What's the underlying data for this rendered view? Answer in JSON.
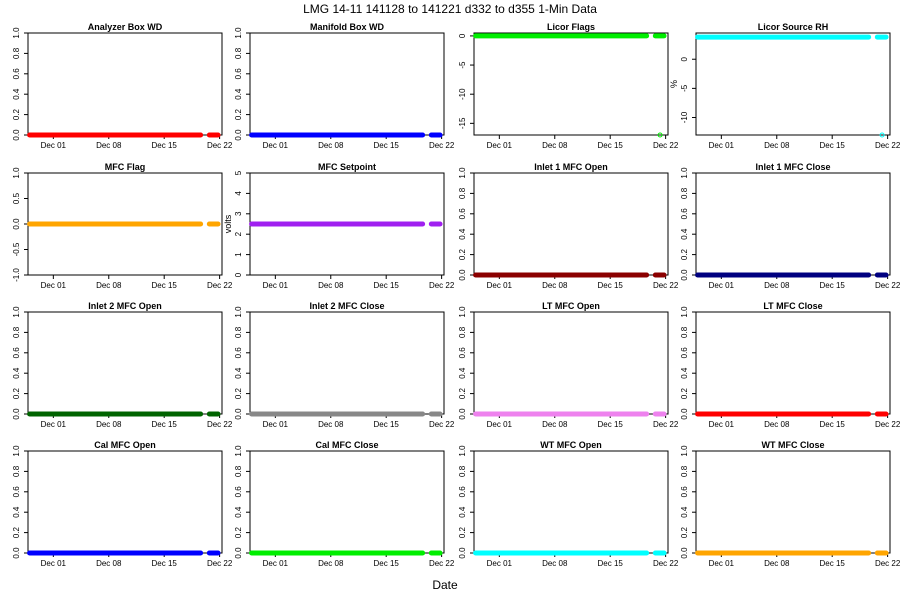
{
  "figure": {
    "title": "LMG  14-11    141128 to 141221    d332 to d355   1-Min Data",
    "xlabel": "Date"
  },
  "chart_data": [
    {
      "type": "scatter",
      "title": "Analyzer Box WD",
      "ylabel": "",
      "ylim": [
        0,
        1
      ],
      "yticks": [
        "0.0",
        "0.2",
        "0.4",
        "0.6",
        "0.8",
        "1.0"
      ],
      "ytick_values": [
        0,
        0.2,
        0.4,
        0.6,
        0.8,
        1.0
      ],
      "color": "#ff0000",
      "xticks": [
        "Dec 01",
        "Dec 08",
        "Dec 15",
        "Dec 22"
      ],
      "xtick_values": [
        3,
        10,
        17,
        24
      ],
      "xlim": [
        -0.2,
        24.3
      ],
      "segments": [
        [
          0,
          21.6
        ],
        [
          22.7,
          23.8
        ]
      ],
      "value": 0,
      "outliers": []
    },
    {
      "type": "scatter",
      "title": "Manifold Box WD",
      "ylabel": "",
      "ylim": [
        0,
        1
      ],
      "yticks": [
        "0.0",
        "0.2",
        "0.4",
        "0.6",
        "0.8",
        "1.0"
      ],
      "ytick_values": [
        0,
        0.2,
        0.4,
        0.6,
        0.8,
        1.0
      ],
      "color": "#0000ff",
      "xticks": [
        "Dec 01",
        "Dec 08",
        "Dec 15",
        "Dec 22"
      ],
      "xtick_values": [
        3,
        10,
        17,
        24
      ],
      "xlim": [
        -0.2,
        24.3
      ],
      "segments": [
        [
          0,
          21.6
        ],
        [
          22.7,
          23.8
        ]
      ],
      "value": 0,
      "outliers": []
    },
    {
      "type": "scatter",
      "title": "Licor Flags",
      "ylabel": "",
      "ylim": [
        -17,
        0.5
      ],
      "yticks": [
        "0",
        "-5",
        "-10",
        "-15"
      ],
      "ytick_values": [
        0,
        -5,
        -10,
        -15
      ],
      "color": "#00ee00",
      "xticks": [
        "Dec 01",
        "Dec 08",
        "Dec 15",
        "Dec 22"
      ],
      "xtick_values": [
        3,
        10,
        17,
        24
      ],
      "xlim": [
        -0.2,
        24.3
      ],
      "segments": [
        [
          0,
          21.6
        ],
        [
          22.7,
          23.8
        ]
      ],
      "value": 0,
      "outliers": [
        [
          23.3,
          -17
        ]
      ]
    },
    {
      "type": "scatter",
      "title": "Licor Source RH",
      "ylabel": "%",
      "ylim": [
        -13,
        4.5
      ],
      "yticks": [
        "0",
        "-5",
        "-10"
      ],
      "ytick_values": [
        0,
        -5,
        -10
      ],
      "color": "#00ffff",
      "xticks": [
        "Dec 01",
        "Dec 08",
        "Dec 15",
        "Dec 22"
      ],
      "xtick_values": [
        3,
        10,
        17,
        24
      ],
      "xlim": [
        -0.2,
        24.3
      ],
      "segments": [
        [
          0,
          21.6
        ],
        [
          22.7,
          23.8
        ]
      ],
      "value": 3.8,
      "outliers": [
        [
          23.3,
          -13
        ]
      ]
    },
    {
      "type": "scatter",
      "title": "MFC Flag",
      "ylabel": "",
      "ylim": [
        -1,
        1
      ],
      "yticks": [
        "-1.0",
        "-0.5",
        "0.0",
        "0.5",
        "1.0"
      ],
      "ytick_values": [
        -1,
        -0.5,
        0,
        0.5,
        1
      ],
      "color": "#ffa500",
      "xticks": [
        "Dec 01",
        "Dec 08",
        "Dec 15",
        "Dec 22"
      ],
      "xtick_values": [
        3,
        10,
        17,
        24
      ],
      "xlim": [
        -0.2,
        24.3
      ],
      "segments": [
        [
          0,
          21.6
        ],
        [
          22.7,
          23.8
        ]
      ],
      "value": 0,
      "outliers": []
    },
    {
      "type": "scatter",
      "title": "MFC Setpoint",
      "ylabel": "volts",
      "ylim": [
        0,
        5
      ],
      "yticks": [
        "0",
        "1",
        "2",
        "3",
        "4",
        "5"
      ],
      "ytick_values": [
        0,
        1,
        2,
        3,
        4,
        5
      ],
      "color": "#a020f0",
      "xticks": [
        "Dec 01",
        "Dec 08",
        "Dec 15",
        "Dec 22"
      ],
      "xtick_values": [
        3,
        10,
        17,
        24
      ],
      "xlim": [
        -0.2,
        24.3
      ],
      "segments": [
        [
          0,
          21.6
        ],
        [
          22.7,
          23.8
        ]
      ],
      "value": 2.5,
      "outliers": []
    },
    {
      "type": "scatter",
      "title": "Inlet 1 MFC Open",
      "ylabel": "",
      "ylim": [
        0,
        1
      ],
      "yticks": [
        "0.0",
        "0.2",
        "0.4",
        "0.6",
        "0.8",
        "1.0"
      ],
      "ytick_values": [
        0,
        0.2,
        0.4,
        0.6,
        0.8,
        1.0
      ],
      "color": "#8b0000",
      "xticks": [
        "Dec 01",
        "Dec 08",
        "Dec 15",
        "Dec 22"
      ],
      "xtick_values": [
        3,
        10,
        17,
        24
      ],
      "xlim": [
        -0.2,
        24.3
      ],
      "segments": [
        [
          0,
          21.6
        ],
        [
          22.7,
          23.8
        ]
      ],
      "value": 0,
      "outliers": []
    },
    {
      "type": "scatter",
      "title": "Inlet 1 MFC Close",
      "ylabel": "",
      "ylim": [
        0,
        1
      ],
      "yticks": [
        "0.0",
        "0.2",
        "0.4",
        "0.6",
        "0.8",
        "1.0"
      ],
      "ytick_values": [
        0,
        0.2,
        0.4,
        0.6,
        0.8,
        1.0
      ],
      "color": "#000080",
      "xticks": [
        "Dec 01",
        "Dec 08",
        "Dec 15",
        "Dec 22"
      ],
      "xtick_values": [
        3,
        10,
        17,
        24
      ],
      "xlim": [
        -0.2,
        24.3
      ],
      "segments": [
        [
          0,
          21.6
        ],
        [
          22.7,
          23.8
        ]
      ],
      "value": 0,
      "outliers": []
    },
    {
      "type": "scatter",
      "title": "Inlet 2 MFC Open",
      "ylabel": "",
      "ylim": [
        0,
        1
      ],
      "yticks": [
        "0.0",
        "0.2",
        "0.4",
        "0.6",
        "0.8",
        "1.0"
      ],
      "ytick_values": [
        0,
        0.2,
        0.4,
        0.6,
        0.8,
        1.0
      ],
      "color": "#006400",
      "xticks": [
        "Dec 01",
        "Dec 08",
        "Dec 15",
        "Dec 22"
      ],
      "xtick_values": [
        3,
        10,
        17,
        24
      ],
      "xlim": [
        -0.2,
        24.3
      ],
      "segments": [
        [
          0,
          21.6
        ],
        [
          22.7,
          23.8
        ]
      ],
      "value": 0,
      "outliers": []
    },
    {
      "type": "scatter",
      "title": "Inlet 2 MFC Close",
      "ylabel": "",
      "ylim": [
        0,
        1
      ],
      "yticks": [
        "0.0",
        "0.2",
        "0.4",
        "0.6",
        "0.8",
        "1.0"
      ],
      "ytick_values": [
        0,
        0.2,
        0.4,
        0.6,
        0.8,
        1.0
      ],
      "color": "#888888",
      "xticks": [
        "Dec 01",
        "Dec 08",
        "Dec 15",
        "Dec 22"
      ],
      "xtick_values": [
        3,
        10,
        17,
        24
      ],
      "xlim": [
        -0.2,
        24.3
      ],
      "segments": [
        [
          0,
          21.6
        ],
        [
          22.7,
          23.8
        ]
      ],
      "value": 0,
      "outliers": []
    },
    {
      "type": "scatter",
      "title": "LT MFC Open",
      "ylabel": "",
      "ylim": [
        0,
        1
      ],
      "yticks": [
        "0.0",
        "0.2",
        "0.4",
        "0.6",
        "0.8",
        "1.0"
      ],
      "ytick_values": [
        0,
        0.2,
        0.4,
        0.6,
        0.8,
        1.0
      ],
      "color": "#ee82ee",
      "xticks": [
        "Dec 01",
        "Dec 08",
        "Dec 15",
        "Dec 22"
      ],
      "xtick_values": [
        3,
        10,
        17,
        24
      ],
      "xlim": [
        -0.2,
        24.3
      ],
      "segments": [
        [
          0,
          21.6
        ],
        [
          22.7,
          23.8
        ]
      ],
      "value": 0,
      "outliers": []
    },
    {
      "type": "scatter",
      "title": "LT MFC Close",
      "ylabel": "",
      "ylim": [
        0,
        1
      ],
      "yticks": [
        "0.0",
        "0.2",
        "0.4",
        "0.6",
        "0.8",
        "1.0"
      ],
      "ytick_values": [
        0,
        0.2,
        0.4,
        0.6,
        0.8,
        1.0
      ],
      "color": "#ff0000",
      "xticks": [
        "Dec 01",
        "Dec 08",
        "Dec 15",
        "Dec 22"
      ],
      "xtick_values": [
        3,
        10,
        17,
        24
      ],
      "xlim": [
        -0.2,
        24.3
      ],
      "segments": [
        [
          0,
          21.6
        ],
        [
          22.7,
          23.8
        ]
      ],
      "value": 0,
      "outliers": []
    },
    {
      "type": "scatter",
      "title": "Cal MFC Open",
      "ylabel": "",
      "ylim": [
        0,
        1
      ],
      "yticks": [
        "0.0",
        "0.2",
        "0.4",
        "0.6",
        "0.8",
        "1.0"
      ],
      "ytick_values": [
        0,
        0.2,
        0.4,
        0.6,
        0.8,
        1.0
      ],
      "color": "#0000ff",
      "xticks": [
        "Dec 01",
        "Dec 08",
        "Dec 15",
        "Dec 22"
      ],
      "xtick_values": [
        3,
        10,
        17,
        24
      ],
      "xlim": [
        -0.2,
        24.3
      ],
      "segments": [
        [
          0,
          21.6
        ],
        [
          22.7,
          23.8
        ]
      ],
      "value": 0,
      "outliers": []
    },
    {
      "type": "scatter",
      "title": "Cal MFC Close",
      "ylabel": "",
      "ylim": [
        0,
        1
      ],
      "yticks": [
        "0.0",
        "0.2",
        "0.4",
        "0.6",
        "0.8",
        "1.0"
      ],
      "ytick_values": [
        0,
        0.2,
        0.4,
        0.6,
        0.8,
        1.0
      ],
      "color": "#00ee00",
      "xticks": [
        "Dec 01",
        "Dec 08",
        "Dec 15",
        "Dec 22"
      ],
      "xtick_values": [
        3,
        10,
        17,
        24
      ],
      "xlim": [
        -0.2,
        24.3
      ],
      "segments": [
        [
          0,
          21.6
        ],
        [
          22.7,
          23.8
        ]
      ],
      "value": 0,
      "outliers": []
    },
    {
      "type": "scatter",
      "title": "WT MFC Open",
      "ylabel": "",
      "ylim": [
        0,
        1
      ],
      "yticks": [
        "0.0",
        "0.2",
        "0.4",
        "0.6",
        "0.8",
        "1.0"
      ],
      "ytick_values": [
        0,
        0.2,
        0.4,
        0.6,
        0.8,
        1.0
      ],
      "color": "#00ffff",
      "xticks": [
        "Dec 01",
        "Dec 08",
        "Dec 15",
        "Dec 22"
      ],
      "xtick_values": [
        3,
        10,
        17,
        24
      ],
      "xlim": [
        -0.2,
        24.3
      ],
      "segments": [
        [
          0,
          21.6
        ],
        [
          22.7,
          23.8
        ]
      ],
      "value": 0,
      "outliers": []
    },
    {
      "type": "scatter",
      "title": "WT MFC Close",
      "ylabel": "",
      "ylim": [
        0,
        1
      ],
      "yticks": [
        "0.0",
        "0.2",
        "0.4",
        "0.6",
        "0.8",
        "1.0"
      ],
      "ytick_values": [
        0,
        0.2,
        0.4,
        0.6,
        0.8,
        1.0
      ],
      "color": "#ffa500",
      "xticks": [
        "Dec 01",
        "Dec 08",
        "Dec 15",
        "Dec 22"
      ],
      "xtick_values": [
        3,
        10,
        17,
        24
      ],
      "xlim": [
        -0.2,
        24.3
      ],
      "segments": [
        [
          0,
          21.6
        ],
        [
          22.7,
          23.8
        ]
      ],
      "value": 0,
      "outliers": []
    }
  ]
}
